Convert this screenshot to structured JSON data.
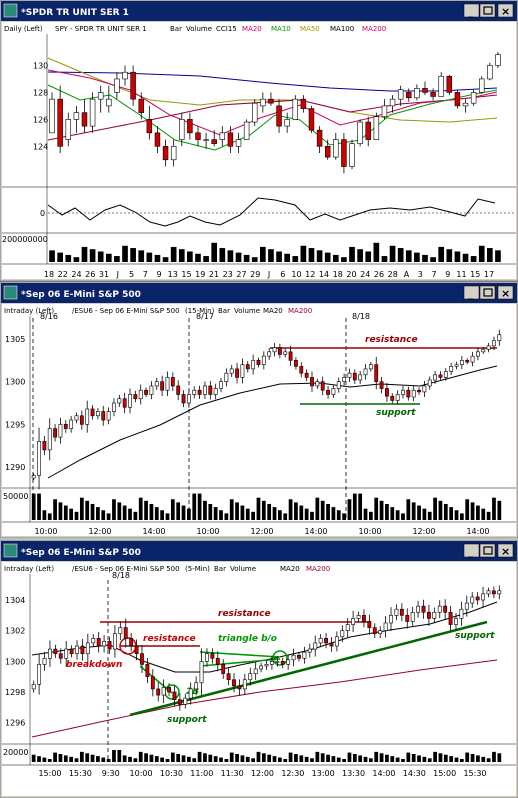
{
  "colors": {
    "titlebar": "#0a246a",
    "frame": "#d4d0c8",
    "up": "#ffffff",
    "down": "#cc0000",
    "ma20": "#000000",
    "ma10": "#009900",
    "ma50": "#999900",
    "ma100": "#000099",
    "ma200": "#990033",
    "resistance": "#990000",
    "support": "#006600",
    "annotRed": "#cc0000"
  },
  "chart_data": [
    {
      "type": "candlestick",
      "window_title": "*SPDR TR UNIT SER 1",
      "legend": {
        "scale": "Daily (Left)",
        "symbol": "SPY - SPDR TR UNIT SER 1",
        "bar": "Bar",
        "volume": "Volume",
        "osc": "CCI15",
        "mas": [
          "MA20",
          "MA10",
          "MA50",
          "MA100",
          "MA200"
        ]
      },
      "ylim": [
        121.5,
        131
      ],
      "yticks": [
        "130",
        "128",
        "126",
        "124"
      ],
      "xticks": [
        "18",
        "22",
        "24",
        "26",
        "31",
        "J",
        "5",
        "7",
        "9",
        "13",
        "15",
        "19",
        "21",
        "23",
        "27",
        "29",
        "J",
        "6",
        "10",
        "12",
        "14",
        "18",
        "20",
        "24",
        "26",
        "28",
        "A",
        "3",
        "7",
        "9",
        "11",
        "15",
        "17"
      ],
      "bars": [
        [
          125,
          128,
          126,
          127.5
        ],
        [
          127.5,
          128.5,
          123.5,
          124
        ],
        [
          124.5,
          126.5,
          124,
          126
        ],
        [
          126,
          127,
          125,
          126.5
        ],
        [
          126.5,
          127.5,
          125,
          125.5
        ],
        [
          125.5,
          128,
          125,
          127.5
        ],
        [
          127.5,
          128.5,
          126.5,
          128
        ],
        [
          127,
          128.5,
          126.5,
          127.5
        ],
        [
          128,
          129.5,
          127.5,
          129
        ],
        [
          129,
          130,
          128.5,
          129.5
        ],
        [
          129.5,
          130,
          127,
          127.5
        ],
        [
          127.5,
          128,
          126,
          126.5
        ],
        [
          126,
          127,
          124.5,
          125
        ],
        [
          125,
          125.5,
          123.5,
          124
        ],
        [
          124,
          124.5,
          122.5,
          123
        ],
        [
          123,
          124.5,
          122.5,
          124
        ],
        [
          124.5,
          126.5,
          124,
          126
        ],
        [
          126,
          126.5,
          124.5,
          125
        ],
        [
          125,
          125.5,
          124,
          124.5
        ],
        [
          124.5,
          125,
          123.8,
          124.5
        ],
        [
          124.5,
          125.2,
          124,
          124.2
        ],
        [
          124.5,
          125.5,
          124,
          125
        ],
        [
          125,
          125.5,
          123.5,
          124
        ],
        [
          124,
          125,
          123.5,
          124.5
        ],
        [
          124.5,
          126,
          124.5,
          125.8
        ],
        [
          125.8,
          127.5,
          125.5,
          127.2
        ],
        [
          127,
          128,
          126.5,
          127.5
        ],
        [
          127.5,
          128,
          127,
          127.2
        ],
        [
          127,
          127.5,
          125,
          125.5
        ],
        [
          125.5,
          126.5,
          125,
          126
        ],
        [
          126,
          127.8,
          126,
          127.5
        ],
        [
          127.5,
          127.8,
          126.5,
          126.8
        ],
        [
          126.8,
          127,
          125,
          125.2
        ],
        [
          125.2,
          125.5,
          123.5,
          124
        ],
        [
          124,
          124.5,
          123,
          123.2
        ],
        [
          123.2,
          125,
          123,
          124.5
        ],
        [
          124.5,
          125,
          122,
          122.5
        ],
        [
          122.5,
          124.5,
          122.3,
          124.2
        ],
        [
          124.2,
          126,
          124,
          125.8
        ],
        [
          125.8,
          126.2,
          124,
          124.5
        ],
        [
          124.5,
          126.5,
          124.5,
          126.2
        ],
        [
          126.2,
          127.5,
          126,
          127
        ],
        [
          127,
          127.8,
          126.5,
          127.5
        ],
        [
          127.5,
          128.5,
          127,
          128.2
        ],
        [
          128,
          128.3,
          127.3,
          127.6
        ],
        [
          127.6,
          128.6,
          127.4,
          128.3
        ],
        [
          128.3,
          128.8,
          127.8,
          128
        ],
        [
          128,
          128.3,
          127.4,
          127.7
        ],
        [
          127.7,
          129.5,
          127.7,
          129.2
        ],
        [
          129.2,
          129.3,
          127.8,
          128
        ],
        [
          128,
          128.2,
          126.8,
          127
        ],
        [
          127,
          127.5,
          126.5,
          127.2
        ],
        [
          127.2,
          128.2,
          127,
          128
        ],
        [
          128,
          129.2,
          127.9,
          129
        ],
        [
          129,
          130.2,
          128.9,
          130
        ],
        [
          130,
          131,
          129.8,
          130.8
        ]
      ],
      "cci_zero_label": "0",
      "volume_label": "200000000"
    },
    {
      "type": "candlestick",
      "window_title": "*Sep 06  E-Mini S&P 500",
      "legend": {
        "scale": "Intraday (Left)",
        "symbol": "/ESU6 - Sep 06  E-Mini S&P 500",
        "interval": "(15-Min)",
        "bar": "Bar",
        "volume": "Volume",
        "mas": [
          "MA20",
          "MA200"
        ]
      },
      "ylim": [
        1288,
        1307
      ],
      "yticks": [
        "1305",
        "1300",
        "1295",
        "1290"
      ],
      "xticks": [
        "10:00",
        "12:00",
        "14:00",
        "10:00",
        "12:00",
        "14:00",
        "10:00",
        "12:00",
        "14:00"
      ],
      "session_labels": [
        "8/16",
        "8/17",
        "8/18"
      ],
      "volume_label": "50000",
      "annotations": [
        {
          "text": "resistance",
          "level": 1304.5
        },
        {
          "text": "support",
          "level": 1297.5
        }
      ],
      "closes": [
        1289,
        1293,
        1292,
        1294.5,
        1293.5,
        1295,
        1294.5,
        1295.5,
        1296,
        1295,
        1296.8,
        1296,
        1296.5,
        1295.5,
        1296.5,
        1297.5,
        1298,
        1297,
        1298.5,
        1298,
        1299,
        1298.5,
        1299.5,
        1300,
        1299,
        1300.5,
        1299.5,
        1298.5,
        1297.5,
        1298.5,
        1299,
        1298.5,
        1299.5,
        1298.5,
        1299.2,
        1300,
        1301,
        1301.5,
        1300.5,
        1302,
        1301.5,
        1302.5,
        1302,
        1303,
        1303.5,
        1304,
        1303.2,
        1303.5,
        1302.5,
        1301.8,
        1301,
        1300.5,
        1299.5,
        1300,
        1299,
        1298.5,
        1299.2,
        1300,
        1300.5,
        1301,
        1300.2,
        1300.8,
        1301.5,
        1302,
        1300,
        1299.2,
        1298.3,
        1297.8,
        1298.5,
        1299,
        1298.2,
        1299,
        1298.8,
        1299.5,
        1300.2,
        1300.8,
        1300.5,
        1301.2,
        1301.8,
        1302,
        1302.5,
        1302.3,
        1303,
        1303.5,
        1303.8,
        1304.2,
        1304.8,
        1305.5
      ]
    },
    {
      "type": "candlestick",
      "window_title": "*Sep 06  E-Mini S&P 500",
      "legend": {
        "scale": "Intraday (Left)",
        "symbol": "/ESU6 - Sep 06  E-Mini S&P 500",
        "interval": "(5-Min)",
        "bar": "Bar",
        "volume": "Volume",
        "mas": [
          "MA20",
          "MA200"
        ]
      },
      "ylim": [
        1295,
        1305.5
      ],
      "yticks": [
        "1304",
        "1302",
        "1300",
        "1298",
        "1296"
      ],
      "xticks": [
        "15:00",
        "15:30",
        "9:30",
        "10:00",
        "10:30",
        "11:00",
        "11:30",
        "12:00",
        "12:30",
        "13:00",
        "13:30",
        "14:00",
        "14:30",
        "15:00",
        "15:30"
      ],
      "session_labels": [
        "8/18"
      ],
      "volume_label": "20000",
      "annotations": [
        {
          "text": "resistance",
          "kind": "upper"
        },
        {
          "text": "resistance",
          "kind": "breakdown"
        },
        {
          "text": "breakdown"
        },
        {
          "text": "triangle b/o"
        },
        {
          "text": "2B"
        },
        {
          "text": "support",
          "kind": "lower"
        },
        {
          "text": "support",
          "kind": "right"
        }
      ],
      "closes": [
        1298.5,
        1299.8,
        1300.2,
        1300.8,
        1300.5,
        1300.2,
        1300.8,
        1300.5,
        1301,
        1300.5,
        1301.2,
        1301.5,
        1301,
        1301.3,
        1300.8,
        1301.8,
        1302.2,
        1301.5,
        1301,
        1300.5,
        1299.8,
        1299,
        1298.2,
        1297.8,
        1298.3,
        1298,
        1297.5,
        1297.2,
        1297.6,
        1298.2,
        1298.6,
        1300,
        1300.5,
        1300.2,
        1299.8,
        1299.2,
        1298.8,
        1298.4,
        1298.2,
        1298.8,
        1299.2,
        1299.5,
        1299.7,
        1299.8,
        1300,
        1300,
        1299.8,
        1300.1,
        1300.4,
        1300.2,
        1300.6,
        1300.8,
        1301.2,
        1301.5,
        1301.2,
        1301,
        1301.6,
        1302,
        1302.4,
        1302.8,
        1303,
        1302.6,
        1302.2,
        1301.8,
        1302,
        1302.5,
        1303,
        1303.4,
        1303,
        1302.6,
        1303.2,
        1303.6,
        1303.2,
        1302.8,
        1303.2,
        1303.6,
        1303.2,
        1302.4,
        1302.8,
        1303.4,
        1303.8,
        1304.2,
        1304,
        1304.4,
        1304.6,
        1304.4,
        1304.6
      ]
    }
  ]
}
